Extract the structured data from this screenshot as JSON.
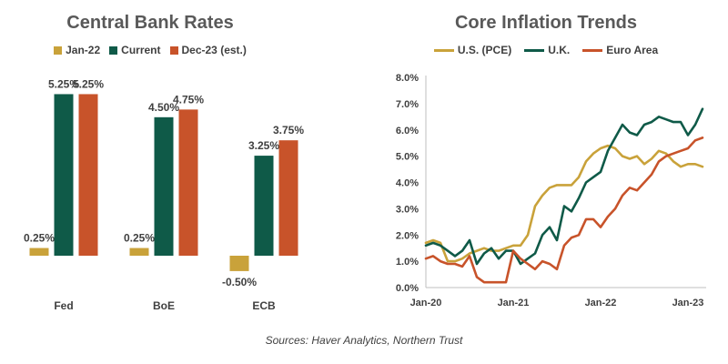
{
  "chart_data": [
    {
      "type": "bar",
      "title": "Central Bank Rates",
      "categories": [
        "Fed",
        "BoE",
        "ECB"
      ],
      "series": [
        {
          "name": "Jan-22",
          "color": "#C9A23A",
          "values": [
            0.25,
            0.25,
            -0.5
          ],
          "labels": [
            "0.25%",
            "0.25%",
            "-0.50%"
          ]
        },
        {
          "name": "Current",
          "color": "#0F5A48",
          "values": [
            5.25,
            4.5,
            3.25
          ],
          "labels": [
            "5.25%",
            "4.50%",
            "3.25%"
          ]
        },
        {
          "name": "Dec-23 (est.)",
          "color": "#C8532A",
          "values": [
            5.25,
            4.75,
            3.75
          ],
          "labels": [
            "5.25%",
            "4.75%",
            "3.75%"
          ]
        }
      ],
      "ylim": [
        -0.5,
        5.5
      ],
      "grid": false,
      "legend": "top"
    },
    {
      "type": "line",
      "title": "Core Inflation Trends",
      "x": [
        "2020-01",
        "2020-02",
        "2020-03",
        "2020-04",
        "2020-05",
        "2020-06",
        "2020-07",
        "2020-08",
        "2020-09",
        "2020-10",
        "2020-11",
        "2020-12",
        "2021-01",
        "2021-02",
        "2021-03",
        "2021-04",
        "2021-05",
        "2021-06",
        "2021-07",
        "2021-08",
        "2021-09",
        "2021-10",
        "2021-11",
        "2021-12",
        "2022-01",
        "2022-02",
        "2022-03",
        "2022-04",
        "2022-05",
        "2022-06",
        "2022-07",
        "2022-08",
        "2022-09",
        "2022-10",
        "2022-11",
        "2022-12",
        "2023-01",
        "2023-02",
        "2023-03"
      ],
      "x_ticks": [
        "Jan-20",
        "Jan-21",
        "Jan-22",
        "Jan-23"
      ],
      "y_ticks": [
        "0.0%",
        "1.0%",
        "2.0%",
        "3.0%",
        "4.0%",
        "5.0%",
        "6.0%",
        "7.0%",
        "8.0%"
      ],
      "ylim": [
        0,
        8
      ],
      "series": [
        {
          "name": "U.S. (PCE)",
          "color": "#C9A23A",
          "values": [
            1.7,
            1.8,
            1.7,
            1.0,
            1.0,
            1.1,
            1.3,
            1.4,
            1.5,
            1.4,
            1.4,
            1.5,
            1.6,
            1.6,
            2.0,
            3.1,
            3.5,
            3.8,
            3.9,
            3.9,
            3.9,
            4.2,
            4.8,
            5.1,
            5.3,
            5.4,
            5.3,
            5.0,
            4.9,
            5.0,
            4.7,
            4.9,
            5.2,
            5.1,
            4.8,
            4.6,
            4.7,
            4.7,
            4.6
          ]
        },
        {
          "name": "U.K.",
          "color": "#0F5A48",
          "values": [
            1.6,
            1.7,
            1.6,
            1.4,
            1.2,
            1.4,
            1.8,
            0.9,
            1.3,
            1.5,
            1.1,
            1.4,
            1.4,
            0.9,
            1.1,
            1.3,
            2.0,
            2.3,
            1.8,
            3.1,
            2.9,
            3.4,
            4.0,
            4.2,
            4.4,
            5.2,
            5.7,
            6.2,
            5.9,
            5.8,
            6.2,
            6.3,
            6.5,
            6.4,
            6.3,
            6.3,
            5.8,
            6.2,
            6.8
          ]
        },
        {
          "name": "Euro Area",
          "color": "#C8532A",
          "values": [
            1.1,
            1.2,
            1.0,
            0.9,
            0.9,
            0.8,
            1.2,
            0.4,
            0.2,
            0.2,
            0.2,
            0.2,
            1.4,
            1.1,
            0.9,
            0.7,
            1.0,
            0.9,
            0.7,
            1.6,
            1.9,
            2.0,
            2.6,
            2.6,
            2.3,
            2.7,
            3.0,
            3.5,
            3.8,
            3.7,
            4.0,
            4.3,
            4.8,
            5.0,
            5.1,
            5.2,
            5.3,
            5.6,
            5.7
          ]
        }
      ],
      "grid": false,
      "legend": "top"
    }
  ],
  "source": "Sources: Haver Analytics, Northern Trust"
}
